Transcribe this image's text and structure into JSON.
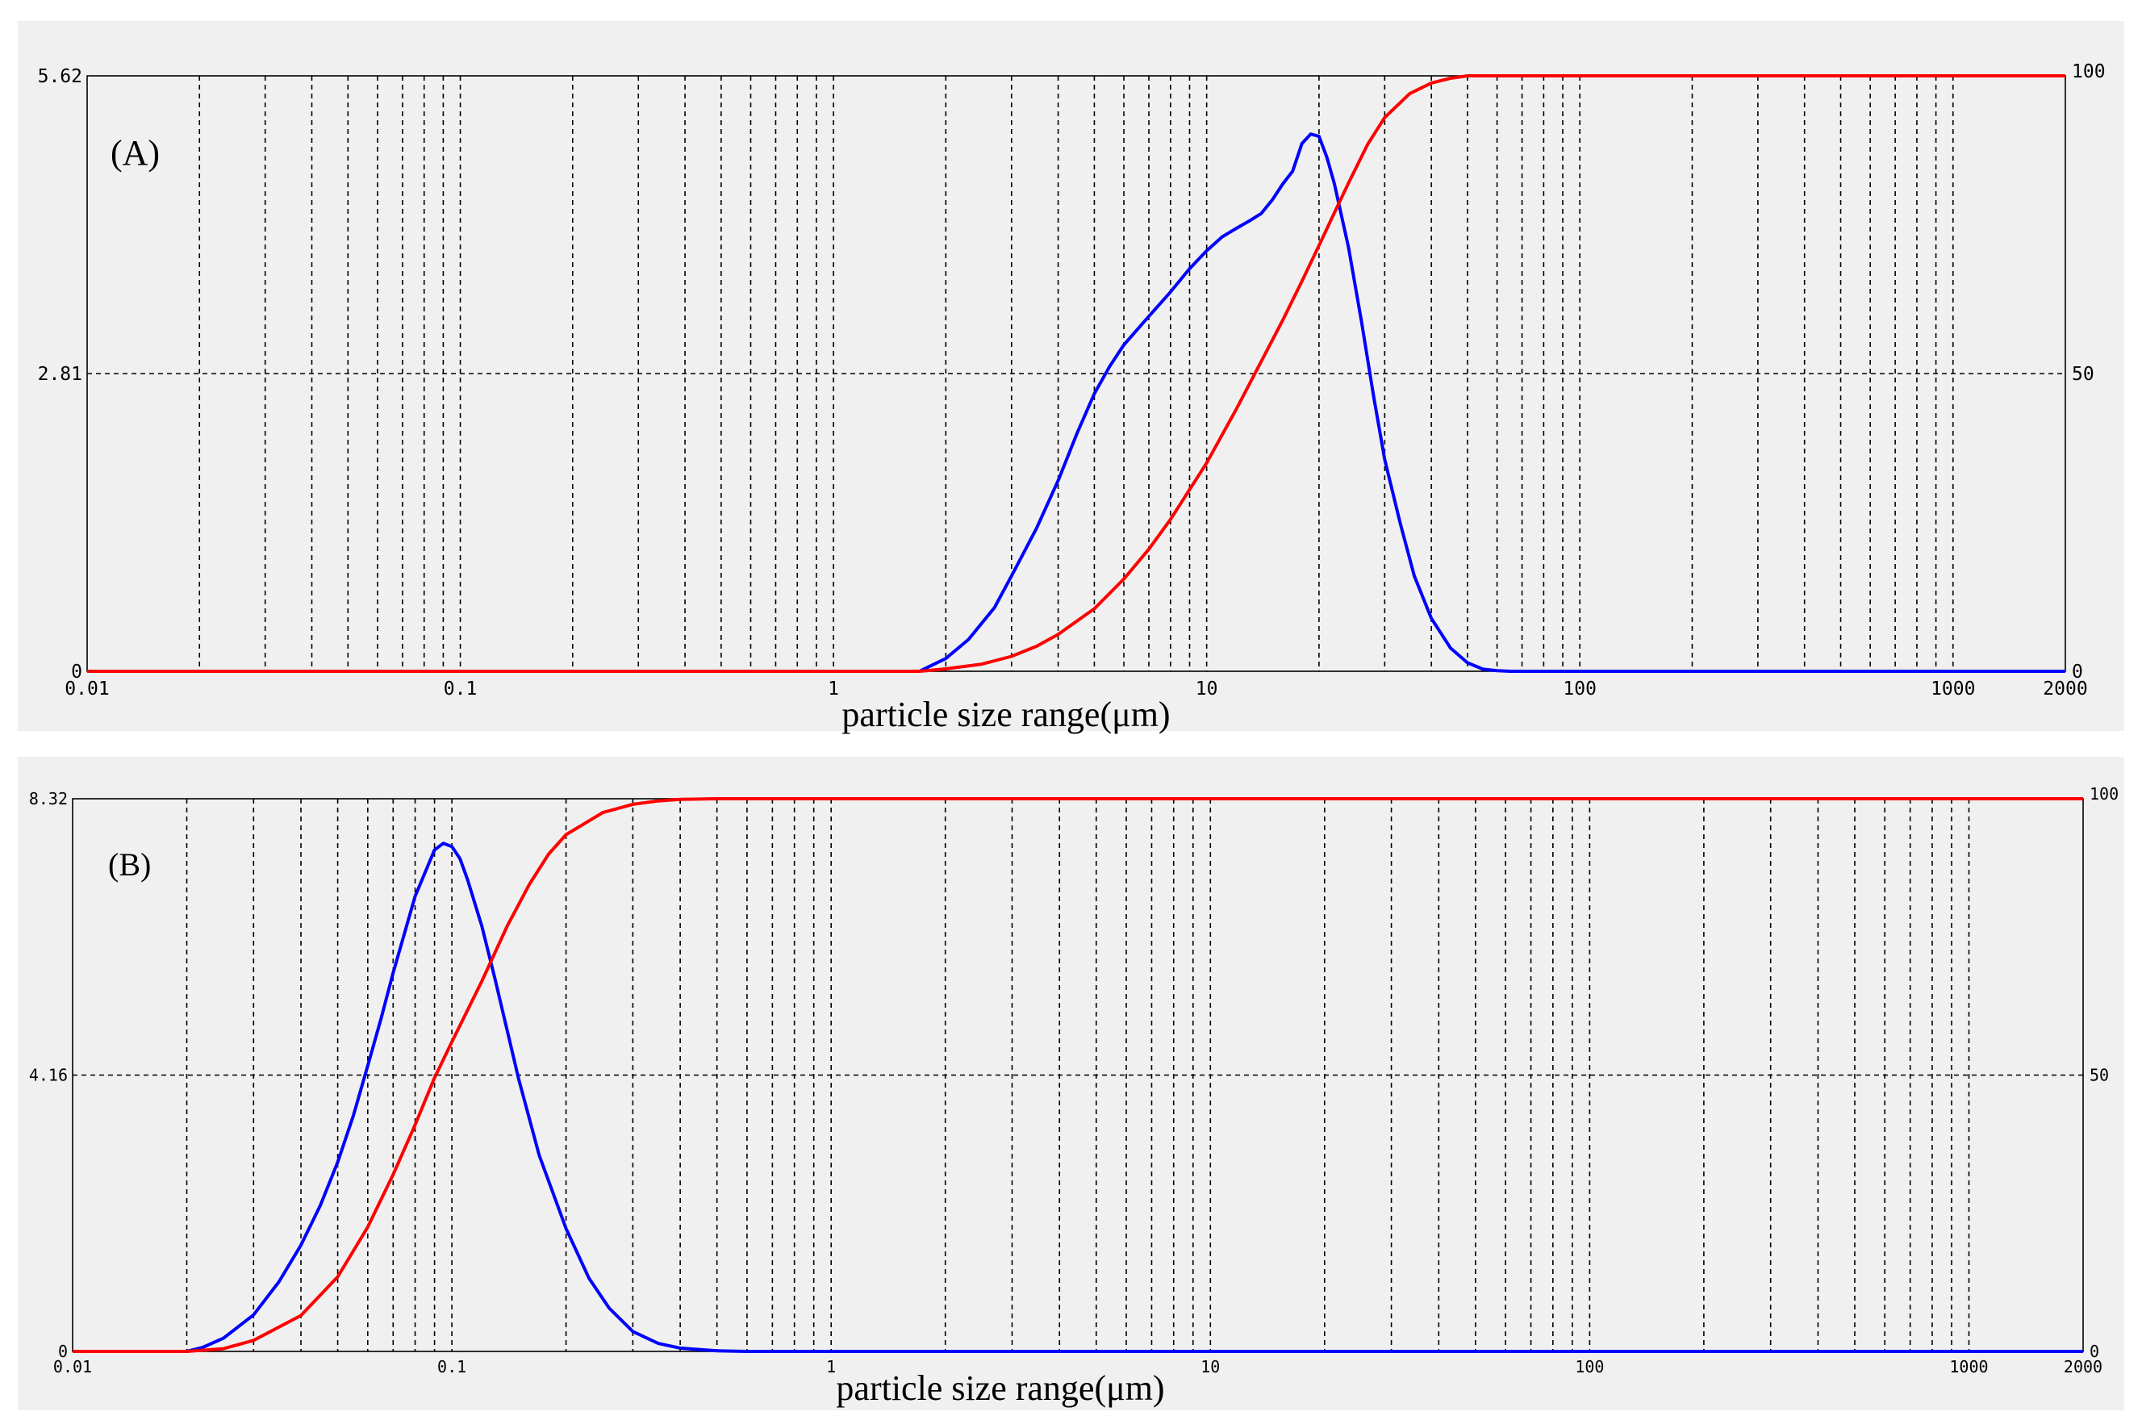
{
  "chart_data": [
    {
      "type": "line",
      "panel_label": "(A)",
      "xlabel": "particle size range(μm)",
      "x_scale": "log",
      "xlim": [
        0.01,
        2000
      ],
      "x_tick_labels": [
        "0.01",
        "0.1",
        "1",
        "10",
        "100",
        "1000",
        "2000"
      ],
      "x_tick_values": [
        0.01,
        0.1,
        1,
        10,
        100,
        1000,
        2000
      ],
      "y_left_lim": [
        0,
        5.62
      ],
      "y_left_tick_labels": [
        "0",
        "2.81",
        "5.62"
      ],
      "y_right_lim": [
        0,
        100
      ],
      "y_right_tick_labels": [
        "0",
        "50",
        "100"
      ],
      "grid": true,
      "series": [
        {
          "color": "#0000ff",
          "axis": "left",
          "x": [
            0.01,
            1.7,
            2.0,
            2.3,
            2.7,
            3.0,
            3.5,
            4.0,
            4.5,
            5.0,
            5.5,
            6.0,
            7.0,
            8.0,
            9.0,
            10.0,
            11.0,
            12.0,
            13.0,
            14.0,
            15.0,
            16.0,
            17.0,
            18.0,
            19.0,
            20.0,
            21.0,
            22.0,
            24.0,
            26.0,
            28.0,
            30.0,
            33.0,
            36.0,
            40.0,
            45.0,
            50.0,
            55.0,
            60.0,
            65.0,
            2000
          ],
          "y": [
            0,
            0,
            0.12,
            0.3,
            0.6,
            0.9,
            1.35,
            1.8,
            2.25,
            2.62,
            2.88,
            3.08,
            3.35,
            3.58,
            3.8,
            3.97,
            4.1,
            4.18,
            4.25,
            4.32,
            4.45,
            4.6,
            4.72,
            4.98,
            5.07,
            5.05,
            4.85,
            4.6,
            4.0,
            3.3,
            2.6,
            2.0,
            1.4,
            0.9,
            0.5,
            0.22,
            0.08,
            0.02,
            0.005,
            0,
            0
          ]
        },
        {
          "color": "#ff0000",
          "axis": "right",
          "x": [
            0.01,
            0.02,
            1.7,
            2.0,
            2.5,
            3.0,
            3.5,
            4.0,
            5.0,
            6.0,
            7.0,
            8.0,
            10.0,
            12.0,
            14.0,
            16.0,
            18.0,
            20.0,
            22.0,
            24.0,
            27.0,
            30.0,
            35.0,
            40.0,
            45.0,
            50.0,
            60.0,
            2000
          ],
          "y": [
            0,
            0,
            0,
            0.4,
            1.2,
            2.5,
            4.2,
            6.2,
            10.5,
            15.5,
            20.5,
            25.5,
            35.0,
            44.0,
            52.0,
            59.0,
            65.5,
            71.5,
            77.0,
            82.0,
            88.5,
            93.0,
            97.0,
            98.8,
            99.6,
            100.0,
            100.0,
            100.0
          ]
        }
      ]
    },
    {
      "type": "line",
      "panel_label": "(B)",
      "xlabel": "particle size range(μm)",
      "x_scale": "log",
      "xlim": [
        0.01,
        2000
      ],
      "x_tick_labels": [
        "0.01",
        "0.1",
        "1",
        "10",
        "100",
        "1000",
        "2000"
      ],
      "x_tick_values": [
        0.01,
        0.1,
        1,
        10,
        100,
        1000,
        2000
      ],
      "y_left_lim": [
        0,
        8.32
      ],
      "y_left_tick_labels": [
        "0",
        "4.16",
        "8.32"
      ],
      "y_right_lim": [
        0,
        100
      ],
      "y_right_tick_labels": [
        "0",
        "50",
        "100"
      ],
      "grid": true,
      "series": [
        {
          "color": "#0000ff",
          "axis": "left",
          "x": [
            0.01,
            0.02,
            0.022,
            0.025,
            0.03,
            0.035,
            0.04,
            0.045,
            0.05,
            0.055,
            0.06,
            0.065,
            0.07,
            0.08,
            0.09,
            0.095,
            0.1,
            0.105,
            0.11,
            0.12,
            0.13,
            0.15,
            0.17,
            0.2,
            0.23,
            0.26,
            0.3,
            0.35,
            0.4,
            0.5,
            0.6,
            2000
          ],
          "y": [
            0,
            0,
            0.06,
            0.2,
            0.55,
            1.05,
            1.6,
            2.2,
            2.85,
            3.55,
            4.3,
            5.0,
            5.7,
            6.85,
            7.55,
            7.65,
            7.6,
            7.42,
            7.1,
            6.4,
            5.6,
            4.1,
            2.95,
            1.85,
            1.1,
            0.65,
            0.3,
            0.12,
            0.05,
            0.01,
            0,
            0
          ]
        },
        {
          "color": "#ff0000",
          "axis": "right",
          "x": [
            0.01,
            0.02,
            0.025,
            0.03,
            0.04,
            0.05,
            0.06,
            0.07,
            0.08,
            0.09,
            0.1,
            0.12,
            0.14,
            0.16,
            0.18,
            0.2,
            0.25,
            0.3,
            0.35,
            0.4,
            0.5,
            2000
          ],
          "y": [
            0,
            0,
            0.5,
            2.0,
            6.5,
            13.5,
            22.5,
            32.0,
            41.0,
            49.5,
            56.0,
            67.0,
            77.0,
            84.5,
            90.0,
            93.5,
            97.5,
            99.0,
            99.6,
            99.9,
            100.0,
            100.0
          ]
        }
      ]
    }
  ]
}
